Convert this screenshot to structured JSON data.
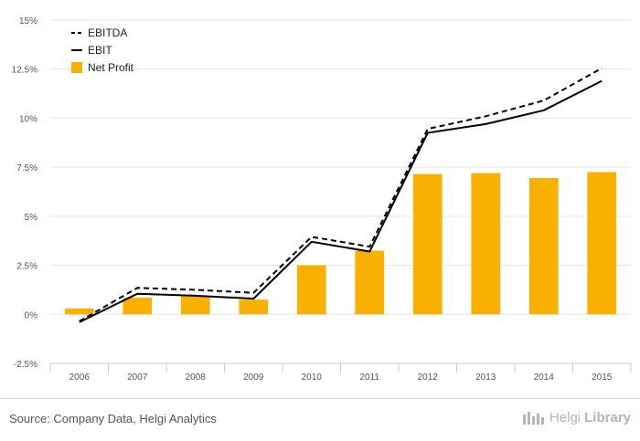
{
  "chart_data": {
    "type": "bar+line",
    "categories": [
      "2006",
      "2007",
      "2008",
      "2009",
      "2010",
      "2011",
      "2012",
      "2013",
      "2014",
      "2015"
    ],
    "series": [
      {
        "name": "EBITDA",
        "kind": "line",
        "style": "dashed",
        "color": "#000000",
        "values": [
          -0.35,
          1.35,
          1.25,
          1.1,
          3.95,
          3.45,
          9.45,
          10.1,
          10.9,
          12.55
        ]
      },
      {
        "name": "EBIT",
        "kind": "line",
        "style": "solid",
        "color": "#000000",
        "values": [
          -0.4,
          1.05,
          0.95,
          0.8,
          3.7,
          3.2,
          9.25,
          9.7,
          10.4,
          11.9
        ]
      },
      {
        "name": "Net Profit",
        "kind": "bar",
        "color": "#f8b100",
        "values": [
          0.3,
          0.85,
          0.95,
          0.75,
          2.5,
          3.25,
          7.15,
          7.2,
          6.95,
          7.25
        ]
      }
    ],
    "yticks": [
      "-2.5%",
      "0%",
      "2.5%",
      "5%",
      "7.5%",
      "10%",
      "12.5%",
      "15%"
    ],
    "ytick_values": [
      -2.5,
      0,
      2.5,
      5,
      7.5,
      10,
      12.5,
      15
    ],
    "ylim": [
      -2.5,
      15
    ],
    "grid": true,
    "legend_position": "top-left"
  },
  "footer": {
    "source": "Source: Company Data, Helgi Analytics",
    "brand_light": "Helgi",
    "brand_bold": "Library"
  }
}
